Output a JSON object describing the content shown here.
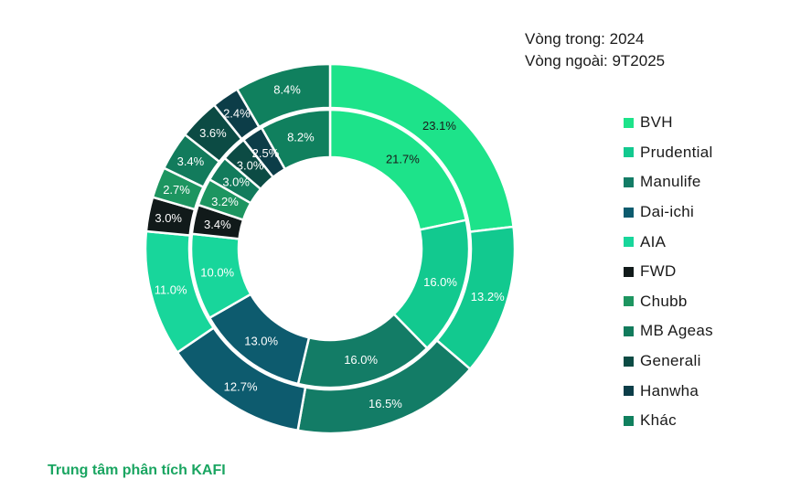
{
  "chart_data": {
    "type": "donut",
    "ring_labels": {
      "inner": "Vòng trong: 2024",
      "outer": "Vòng ngoài: 9T2025"
    },
    "categories": [
      "BVH",
      "Prudential",
      "Manulife",
      "Dai-ichi",
      "AIA",
      "FWD",
      "Chubb",
      "MB Ageas",
      "Generali",
      "Hanwha",
      "Khác"
    ],
    "series": [
      {
        "name": "2024",
        "ring": "inner",
        "values": [
          21.7,
          16.0,
          16.0,
          13.0,
          10.0,
          3.4,
          3.2,
          3.0,
          3.0,
          2.5,
          8.2
        ],
        "labels": [
          "21.7%",
          "16.0%",
          "16.0%",
          "13.0%",
          "10.0%",
          "3.4%",
          "3.2%",
          "3.0%",
          "3.0%",
          "2.5%",
          "8.2%"
        ]
      },
      {
        "name": "9T2025",
        "ring": "outer",
        "values": [
          23.1,
          13.2,
          16.5,
          12.7,
          11.0,
          3.0,
          2.7,
          3.4,
          3.6,
          2.4,
          8.4
        ],
        "labels": [
          "23.1%",
          "13.2%",
          "16.5%",
          "12.7%",
          "11.0%",
          "3.0%",
          "2.7%",
          "3.4%",
          "3.6%",
          "2.4%",
          "8.4%"
        ]
      }
    ],
    "colors": [
      "#1de38a",
      "#12c98f",
      "#137c66",
      "#0d5b6e",
      "#18d69b",
      "#111a1a",
      "#1d9560",
      "#127b5c",
      "#0c4b44",
      "#0c3d48",
      "#10805e"
    ],
    "label_colors": [
      "#1a1a1a",
      "#ffffff",
      "#ffffff",
      "#ffffff",
      "#ffffff",
      "#ffffff",
      "#ffffff",
      "#ffffff",
      "#ffffff",
      "#ffffff",
      "#ffffff"
    ],
    "legend": [
      "BVH",
      "Prudential",
      "Manulife",
      "Dai-ichi",
      "AIA",
      "FWD",
      "Chubb",
      "MB Ageas",
      "Generali",
      "Hanwha",
      "Khác"
    ],
    "legend_position": "right"
  },
  "footer": {
    "source": "Trung tâm phân tích KAFI"
  }
}
